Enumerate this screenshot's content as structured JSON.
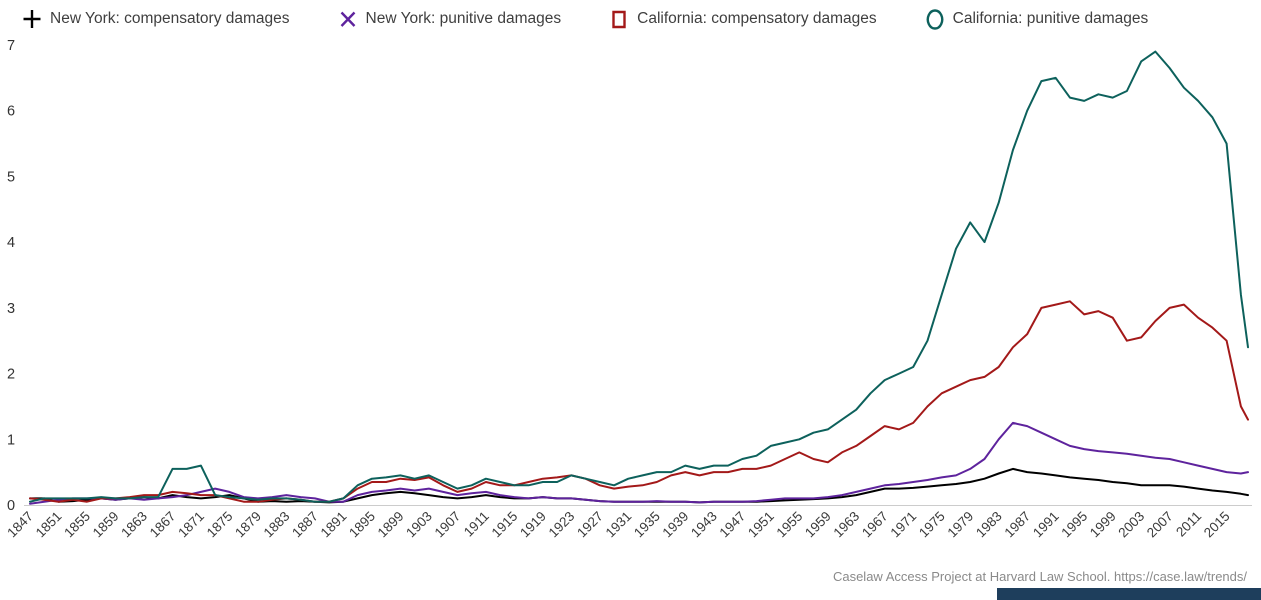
{
  "legend": {
    "items": [
      {
        "label": "New York: compensatory damages",
        "color": "#000000",
        "marker": "plus"
      },
      {
        "label": "New York: punitive damages",
        "color": "#5e239d",
        "marker": "x"
      },
      {
        "label": "California: compensatory damages",
        "color": "#a31919",
        "marker": "square"
      },
      {
        "label": "California: punitive damages",
        "color": "#0d615c",
        "marker": "circle"
      }
    ]
  },
  "footer": {
    "attribution": "Caselaw Access Project at Harvard Law School.",
    "link": "https://case.law/trends/"
  },
  "chart_data": {
    "type": "line",
    "title": "",
    "xlabel": "",
    "ylabel": "",
    "grid": false,
    "legend_position": "top",
    "xlim": [
      1847,
      2018
    ],
    "ylim": [
      0,
      7
    ],
    "yticks": [
      0,
      1,
      2,
      3,
      4,
      5,
      6,
      7
    ],
    "xticks": [
      1847,
      1851,
      1855,
      1859,
      1863,
      1867,
      1871,
      1875,
      1879,
      1883,
      1887,
      1891,
      1895,
      1899,
      1903,
      1907,
      1911,
      1915,
      1919,
      1923,
      1927,
      1931,
      1935,
      1939,
      1943,
      1947,
      1951,
      1955,
      1959,
      1963,
      1967,
      1971,
      1975,
      1979,
      1983,
      1987,
      1991,
      1995,
      1999,
      2003,
      2007,
      2011,
      2015
    ],
    "x": [
      1847,
      1849,
      1851,
      1853,
      1855,
      1857,
      1859,
      1861,
      1863,
      1865,
      1867,
      1869,
      1871,
      1873,
      1875,
      1877,
      1879,
      1881,
      1883,
      1885,
      1887,
      1889,
      1891,
      1893,
      1895,
      1897,
      1899,
      1901,
      1903,
      1905,
      1907,
      1909,
      1911,
      1913,
      1915,
      1917,
      1919,
      1921,
      1923,
      1925,
      1927,
      1929,
      1931,
      1933,
      1935,
      1937,
      1939,
      1941,
      1943,
      1945,
      1947,
      1949,
      1951,
      1953,
      1955,
      1957,
      1959,
      1961,
      1963,
      1965,
      1967,
      1969,
      1971,
      1973,
      1975,
      1977,
      1979,
      1981,
      1983,
      1985,
      1987,
      1989,
      1991,
      1993,
      1995,
      1997,
      1999,
      2001,
      2003,
      2005,
      2007,
      2009,
      2011,
      2013,
      2015,
      2017,
      2018
    ],
    "series": [
      {
        "name": "New York: compensatory damages",
        "color": "#000000",
        "marker": "plus",
        "values": [
          0.1,
          0.1,
          0.05,
          0.06,
          0.08,
          0.1,
          0.08,
          0.1,
          0.12,
          0.1,
          0.15,
          0.12,
          0.1,
          0.12,
          0.15,
          0.1,
          0.05,
          0.06,
          0.05,
          0.06,
          0.05,
          0.04,
          0.05,
          0.1,
          0.15,
          0.18,
          0.2,
          0.18,
          0.15,
          0.12,
          0.1,
          0.12,
          0.15,
          0.12,
          0.1,
          0.1,
          0.12,
          0.1,
          0.1,
          0.08,
          0.06,
          0.05,
          0.05,
          0.05,
          0.05,
          0.05,
          0.05,
          0.04,
          0.05,
          0.05,
          0.05,
          0.05,
          0.06,
          0.07,
          0.08,
          0.09,
          0.1,
          0.12,
          0.15,
          0.2,
          0.25,
          0.25,
          0.26,
          0.28,
          0.3,
          0.32,
          0.35,
          0.4,
          0.48,
          0.55,
          0.5,
          0.48,
          0.45,
          0.42,
          0.4,
          0.38,
          0.35,
          0.33,
          0.3,
          0.3,
          0.3,
          0.28,
          0.25,
          0.22,
          0.2,
          0.17,
          0.15
        ]
      },
      {
        "name": "New York: punitive damages",
        "color": "#5e239d",
        "marker": "x",
        "values": [
          0.02,
          0.05,
          0.08,
          0.1,
          0.1,
          0.1,
          0.08,
          0.1,
          0.08,
          0.1,
          0.12,
          0.15,
          0.2,
          0.25,
          0.2,
          0.12,
          0.1,
          0.12,
          0.15,
          0.12,
          0.1,
          0.05,
          0.05,
          0.15,
          0.2,
          0.22,
          0.25,
          0.22,
          0.25,
          0.2,
          0.15,
          0.18,
          0.2,
          0.15,
          0.12,
          0.1,
          0.12,
          0.1,
          0.1,
          0.08,
          0.06,
          0.05,
          0.05,
          0.05,
          0.06,
          0.05,
          0.05,
          0.04,
          0.05,
          0.05,
          0.05,
          0.06,
          0.08,
          0.1,
          0.1,
          0.1,
          0.12,
          0.15,
          0.2,
          0.25,
          0.3,
          0.32,
          0.35,
          0.38,
          0.42,
          0.45,
          0.55,
          0.7,
          1.0,
          1.25,
          1.2,
          1.1,
          1.0,
          0.9,
          0.85,
          0.82,
          0.8,
          0.78,
          0.75,
          0.72,
          0.7,
          0.65,
          0.6,
          0.55,
          0.5,
          0.48,
          0.5
        ]
      },
      {
        "name": "California: compensatory damages",
        "color": "#a31919",
        "marker": "square",
        "values": [
          0.1,
          0.08,
          0.05,
          0.08,
          0.05,
          0.1,
          0.1,
          0.12,
          0.15,
          0.15,
          0.2,
          0.18,
          0.15,
          0.15,
          0.1,
          0.05,
          0.05,
          0.08,
          0.1,
          0.08,
          0.05,
          0.05,
          0.1,
          0.25,
          0.35,
          0.35,
          0.4,
          0.38,
          0.42,
          0.3,
          0.2,
          0.25,
          0.35,
          0.3,
          0.3,
          0.35,
          0.4,
          0.42,
          0.45,
          0.4,
          0.3,
          0.25,
          0.28,
          0.3,
          0.35,
          0.45,
          0.5,
          0.45,
          0.5,
          0.5,
          0.55,
          0.55,
          0.6,
          0.7,
          0.8,
          0.7,
          0.65,
          0.8,
          0.9,
          1.05,
          1.2,
          1.15,
          1.25,
          1.5,
          1.7,
          1.8,
          1.9,
          1.95,
          2.1,
          2.4,
          2.6,
          3.0,
          3.05,
          3.1,
          2.9,
          2.95,
          2.85,
          2.5,
          2.55,
          2.8,
          3.0,
          3.05,
          2.85,
          2.7,
          2.5,
          1.5,
          1.3
        ]
      },
      {
        "name": "California: punitive damages",
        "color": "#0d615c",
        "marker": "circle",
        "values": [
          0.05,
          0.1,
          0.1,
          0.1,
          0.1,
          0.12,
          0.1,
          0.1,
          0.12,
          0.12,
          0.55,
          0.55,
          0.6,
          0.15,
          0.12,
          0.1,
          0.08,
          0.1,
          0.1,
          0.08,
          0.05,
          0.05,
          0.1,
          0.3,
          0.4,
          0.42,
          0.45,
          0.4,
          0.45,
          0.35,
          0.25,
          0.3,
          0.4,
          0.35,
          0.3,
          0.3,
          0.35,
          0.35,
          0.45,
          0.4,
          0.35,
          0.3,
          0.4,
          0.45,
          0.5,
          0.5,
          0.6,
          0.55,
          0.6,
          0.6,
          0.7,
          0.75,
          0.9,
          0.95,
          1.0,
          1.1,
          1.15,
          1.3,
          1.45,
          1.7,
          1.9,
          2.0,
          2.1,
          2.5,
          3.2,
          3.9,
          4.3,
          4.0,
          4.6,
          5.4,
          6.0,
          6.45,
          6.5,
          6.2,
          6.15,
          6.25,
          6.2,
          6.3,
          6.75,
          6.9,
          6.65,
          6.35,
          6.15,
          5.9,
          5.5,
          3.2,
          2.4
        ]
      }
    ]
  }
}
